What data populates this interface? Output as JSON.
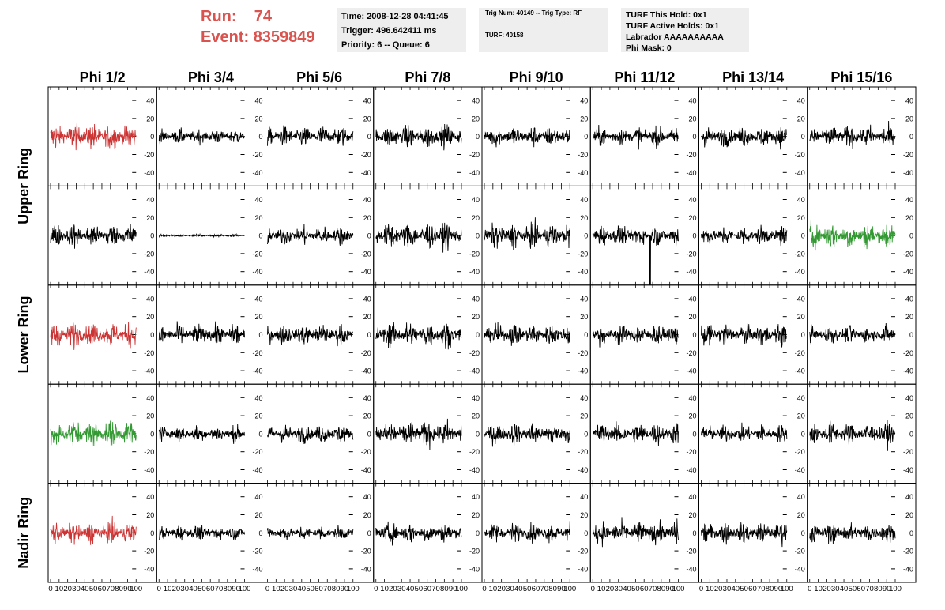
{
  "header": {
    "run_label": "Run:",
    "run_value": "74",
    "event_label": "Event:",
    "event_value": "8359849",
    "info1": [
      "Time: 2008-12-28 04:41:45",
      "Trigger: 496.642411 ms",
      "Priority: 6 -- Queue: 6"
    ],
    "info2": [
      "Trig Num: 40149 -- Trig Type: RF",
      "TURF: 40158"
    ],
    "info3": [
      "TURF This Hold: 0x1",
      "TURF Active Holds: 0x1",
      "Labrador AAAAAAAAAA",
      "Phi Mask: 0"
    ]
  },
  "colors": {
    "red": "#cc3333",
    "green": "#339933",
    "black": "#000000",
    "header_red": "#d9534f",
    "box_bg": "#eeeeee"
  },
  "chart_data": {
    "type": "line",
    "columns": [
      "Phi 1/2",
      "Phi 3/4",
      "Phi 5/6",
      "Phi 7/8",
      "Phi 9/10",
      "Phi 11/12",
      "Phi 13/14",
      "Phi 15/16"
    ],
    "ring_labels": [
      "Upper Ring",
      "Lower Ring",
      "Nadir Ring"
    ],
    "rows": 5,
    "xlim": [
      0,
      100
    ],
    "ylim": [
      -55,
      55
    ],
    "yticks": [
      -40,
      -20,
      0,
      20,
      40
    ],
    "xticks": [
      0,
      10,
      20,
      30,
      40,
      50,
      60,
      70,
      80,
      90,
      100
    ],
    "grid": false,
    "note": "Each panel shows a noisy waveform; amplitudes are approximate envelopes read from the plot.",
    "panels": [
      {
        "row": 0,
        "col": 0,
        "color": "red",
        "amp": 18,
        "spike": null
      },
      {
        "row": 0,
        "col": 1,
        "color": "black",
        "amp": 10,
        "spike": null
      },
      {
        "row": 0,
        "col": 2,
        "color": "black",
        "amp": 14,
        "spike": null
      },
      {
        "row": 0,
        "col": 3,
        "color": "black",
        "amp": 16,
        "spike": null
      },
      {
        "row": 0,
        "col": 4,
        "color": "black",
        "amp": 14,
        "spike": null
      },
      {
        "row": 0,
        "col": 5,
        "color": "black",
        "amp": 13,
        "spike": null
      },
      {
        "row": 0,
        "col": 6,
        "color": "black",
        "amp": 14,
        "spike": null
      },
      {
        "row": 0,
        "col": 7,
        "color": "black",
        "amp": 15,
        "spike": null
      },
      {
        "row": 1,
        "col": 0,
        "color": "black",
        "amp": 16,
        "spike": null
      },
      {
        "row": 1,
        "col": 1,
        "color": "black",
        "amp": 2,
        "spike": null
      },
      {
        "row": 1,
        "col": 2,
        "color": "black",
        "amp": 13,
        "spike": null
      },
      {
        "row": 1,
        "col": 3,
        "color": "black",
        "amp": 18,
        "spike": null
      },
      {
        "row": 1,
        "col": 4,
        "color": "black",
        "amp": 17,
        "spike": null
      },
      {
        "row": 1,
        "col": 5,
        "color": "black",
        "amp": 14,
        "spike": {
          "x": 67,
          "y": -55
        }
      },
      {
        "row": 1,
        "col": 6,
        "color": "black",
        "amp": 13,
        "spike": null
      },
      {
        "row": 1,
        "col": 7,
        "color": "green",
        "amp": 18,
        "spike": null
      },
      {
        "row": 2,
        "col": 0,
        "color": "red",
        "amp": 17,
        "spike": null
      },
      {
        "row": 2,
        "col": 1,
        "color": "black",
        "amp": 14,
        "spike": null
      },
      {
        "row": 2,
        "col": 2,
        "color": "black",
        "amp": 14,
        "spike": null
      },
      {
        "row": 2,
        "col": 3,
        "color": "black",
        "amp": 17,
        "spike": null
      },
      {
        "row": 2,
        "col": 4,
        "color": "black",
        "amp": 15,
        "spike": null
      },
      {
        "row": 2,
        "col": 5,
        "color": "black",
        "amp": 14,
        "spike": null
      },
      {
        "row": 2,
        "col": 6,
        "color": "black",
        "amp": 15,
        "spike": null
      },
      {
        "row": 2,
        "col": 7,
        "color": "black",
        "amp": 12,
        "spike": null
      },
      {
        "row": 3,
        "col": 0,
        "color": "green",
        "amp": 18,
        "spike": null
      },
      {
        "row": 3,
        "col": 1,
        "color": "black",
        "amp": 11,
        "spike": null
      },
      {
        "row": 3,
        "col": 2,
        "color": "black",
        "amp": 13,
        "spike": null
      },
      {
        "row": 3,
        "col": 3,
        "color": "black",
        "amp": 18,
        "spike": null
      },
      {
        "row": 3,
        "col": 4,
        "color": "black",
        "amp": 15,
        "spike": null
      },
      {
        "row": 3,
        "col": 5,
        "color": "black",
        "amp": 15,
        "spike": null
      },
      {
        "row": 3,
        "col": 6,
        "color": "black",
        "amp": 12,
        "spike": null
      },
      {
        "row": 3,
        "col": 7,
        "color": "black",
        "amp": 15,
        "spike": null
      },
      {
        "row": 4,
        "col": 0,
        "color": "red",
        "amp": 15,
        "spike": null
      },
      {
        "row": 4,
        "col": 1,
        "color": "black",
        "amp": 10,
        "spike": null
      },
      {
        "row": 4,
        "col": 2,
        "color": "black",
        "amp": 10,
        "spike": null
      },
      {
        "row": 4,
        "col": 3,
        "color": "black",
        "amp": 14,
        "spike": null
      },
      {
        "row": 4,
        "col": 4,
        "color": "black",
        "amp": 13,
        "spike": null
      },
      {
        "row": 4,
        "col": 5,
        "color": "black",
        "amp": 16,
        "spike": null
      },
      {
        "row": 4,
        "col": 6,
        "color": "black",
        "amp": 14,
        "spike": null
      },
      {
        "row": 4,
        "col": 7,
        "color": "black",
        "amp": 14,
        "spike": null
      }
    ]
  }
}
